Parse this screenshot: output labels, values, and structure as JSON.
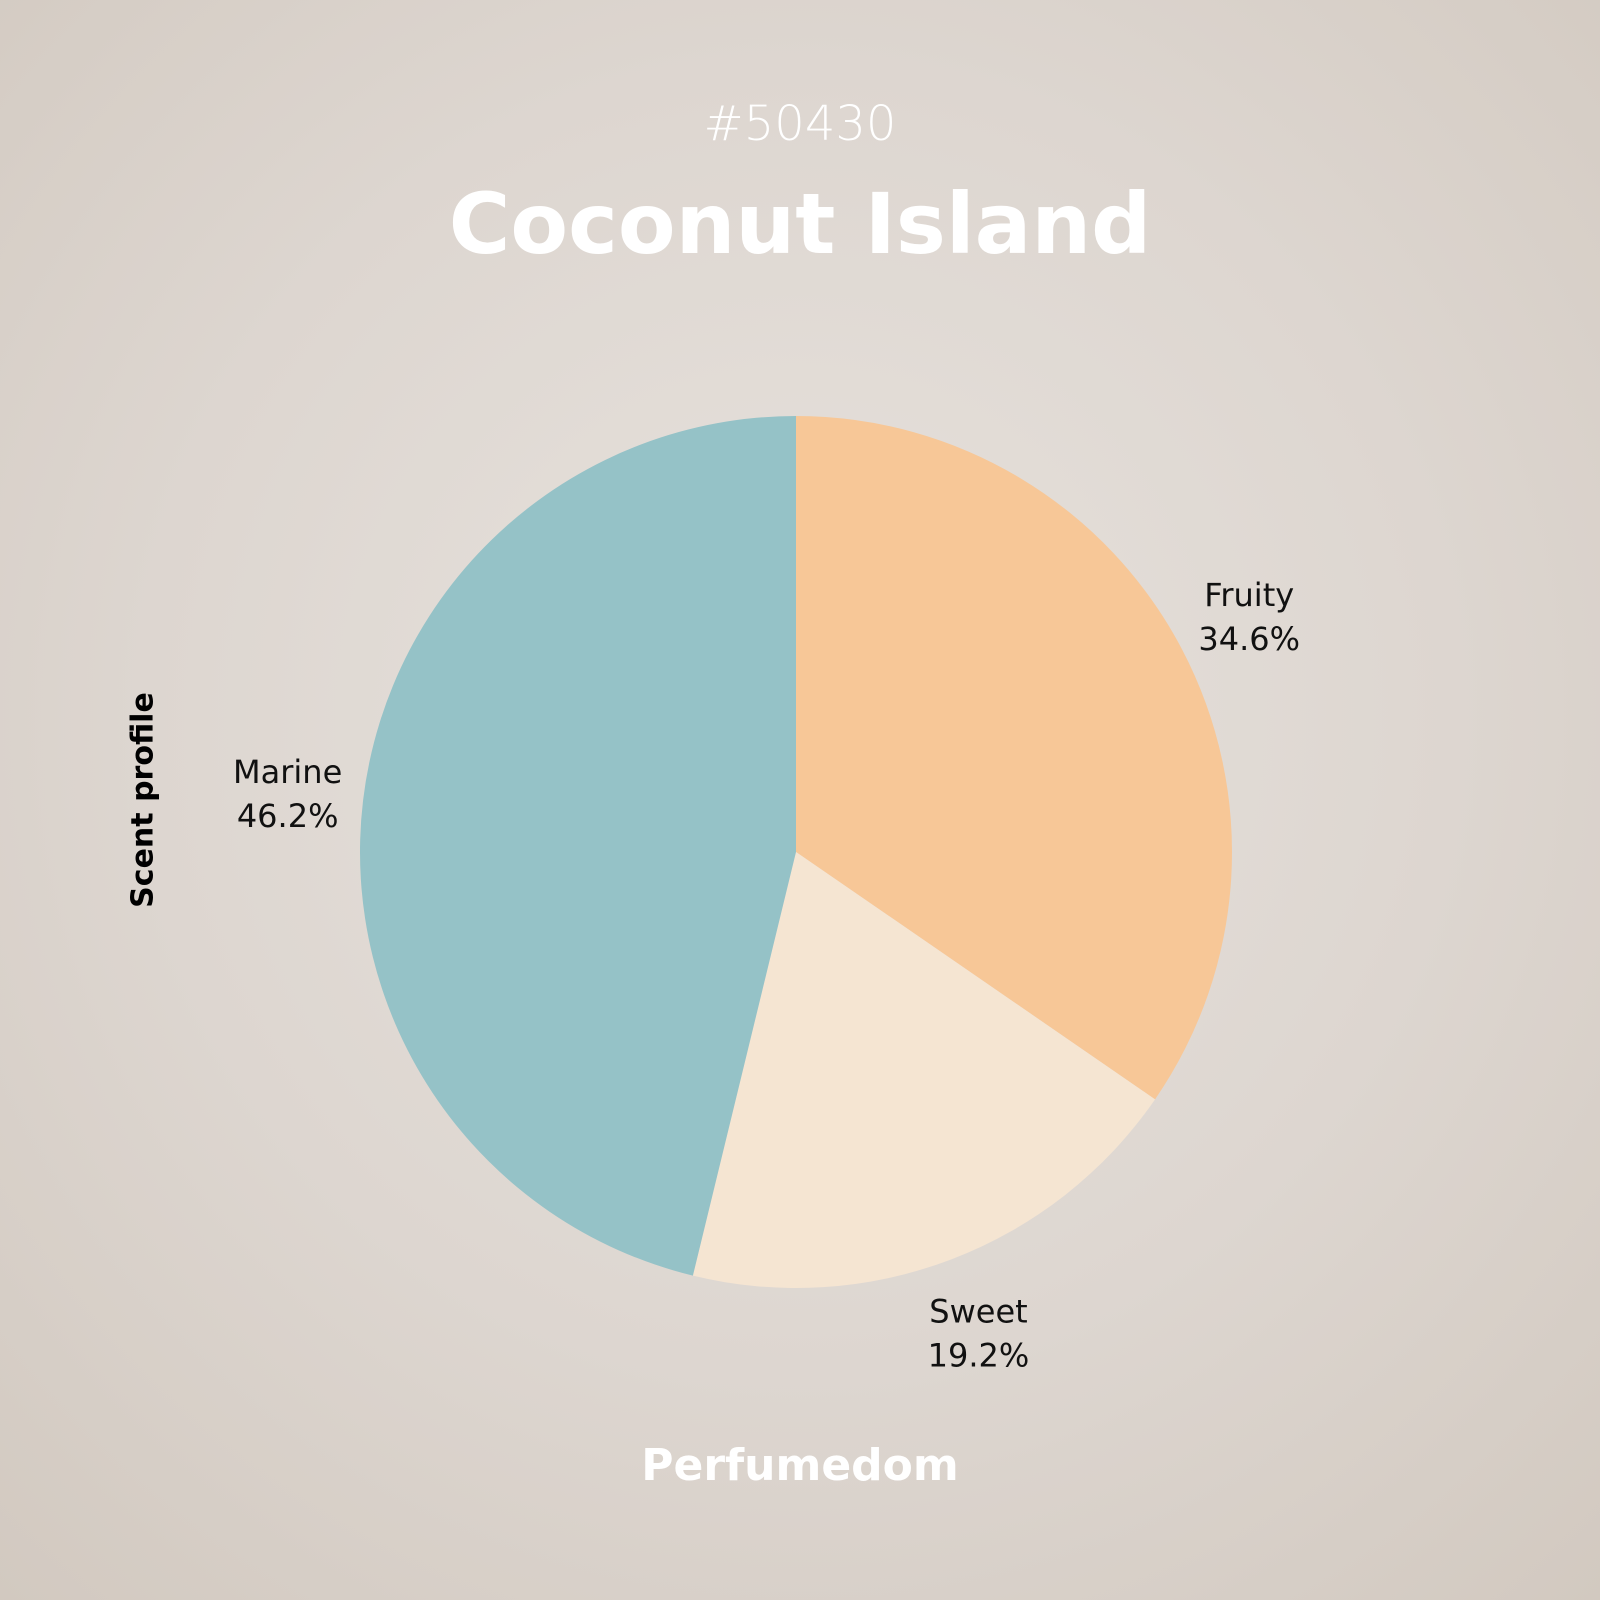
{
  "header": {
    "id": "#50430",
    "title": "Coconut Island"
  },
  "footer": {
    "brand": "Perfumedom"
  },
  "chart_data": {
    "type": "pie",
    "ylabel": "Scent profile",
    "start": "top",
    "direction": "clockwise",
    "slices": [
      {
        "label": "Fruity",
        "value": 34.6,
        "display": "34.6%",
        "color": "#f7c797"
      },
      {
        "label": "Sweet",
        "value": 19.2,
        "display": "19.2%",
        "color": "#f5e5d2"
      },
      {
        "label": "Marine",
        "value": 46.2,
        "display": "46.2%",
        "color": "#95c2c7"
      }
    ]
  }
}
